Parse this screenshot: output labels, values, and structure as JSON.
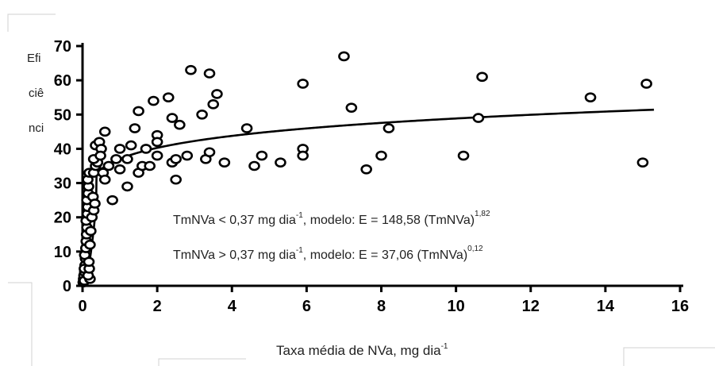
{
  "chart_data": {
    "type": "scatter",
    "ylabel_fragments": [
      "Efi",
      "ciê",
      "nci"
    ],
    "xlabel_main": "Taxa média de NVa, mg dia",
    "xlabel_sup": "-1",
    "xlim": [
      0,
      16
    ],
    "ylim": [
      0,
      70
    ],
    "x_ticks": [
      0,
      2,
      4,
      6,
      8,
      10,
      12,
      14,
      16
    ],
    "y_ticks": [
      0,
      10,
      20,
      30,
      40,
      50,
      60,
      70
    ],
    "annotations": [
      {
        "main": "TmNVa < 0,37 mg dia",
        "sup1": "-1",
        "mid": ", modelo: E = 148,58 (TmNVa)",
        "sup2": "1,82"
      },
      {
        "main": "TmNVa > 0,37 mg dia",
        "sup1": "-1",
        "mid": ", modelo: E = 37,06 (TmNVa)",
        "sup2": "0,12"
      }
    ],
    "fit_models": [
      {
        "range": [
          0,
          0.37
        ],
        "a": 148.58,
        "b": 1.82
      },
      {
        "range": [
          0.37,
          15.3
        ],
        "a": 37.06,
        "b": 0.12
      }
    ],
    "points": [
      [
        0.02,
        1
      ],
      [
        0.03,
        2
      ],
      [
        0.04,
        3
      ],
      [
        0.05,
        1.5
      ],
      [
        0.06,
        4
      ],
      [
        0.07,
        6
      ],
      [
        0.05,
        5
      ],
      [
        0.08,
        8
      ],
      [
        0.06,
        9
      ],
      [
        0.09,
        11
      ],
      [
        0.1,
        13
      ],
      [
        0.11,
        15
      ],
      [
        0.12,
        17
      ],
      [
        0.1,
        19
      ],
      [
        0.13,
        21
      ],
      [
        0.14,
        23
      ],
      [
        0.12,
        25
      ],
      [
        0.15,
        27
      ],
      [
        0.16,
        29
      ],
      [
        0.14,
        31
      ],
      [
        0.18,
        33
      ],
      [
        0.2,
        2
      ],
      [
        0.15,
        3
      ],
      [
        0.18,
        5
      ],
      [
        0.2,
        12
      ],
      [
        0.22,
        16
      ],
      [
        0.17,
        7
      ],
      [
        0.25,
        20
      ],
      [
        0.3,
        22
      ],
      [
        0.28,
        26
      ],
      [
        0.33,
        24
      ],
      [
        0.3,
        33
      ],
      [
        0.35,
        35
      ],
      [
        0.4,
        36
      ],
      [
        0.3,
        37
      ],
      [
        0.35,
        41
      ],
      [
        0.45,
        42
      ],
      [
        0.5,
        40
      ],
      [
        0.48,
        38
      ],
      [
        0.55,
        33
      ],
      [
        0.6,
        31
      ],
      [
        0.7,
        35
      ],
      [
        0.6,
        45
      ],
      [
        0.8,
        25
      ],
      [
        0.9,
        37
      ],
      [
        1.0,
        34
      ],
      [
        1.0,
        40
      ],
      [
        1.2,
        29
      ],
      [
        1.2,
        37
      ],
      [
        1.3,
        41
      ],
      [
        1.4,
        46
      ],
      [
        1.5,
        33
      ],
      [
        1.5,
        51
      ],
      [
        1.6,
        35
      ],
      [
        1.7,
        40
      ],
      [
        1.8,
        35
      ],
      [
        1.9,
        54
      ],
      [
        2.0,
        44
      ],
      [
        2.0,
        42
      ],
      [
        2.0,
        38
      ],
      [
        2.3,
        55
      ],
      [
        2.4,
        49
      ],
      [
        2.4,
        36
      ],
      [
        2.5,
        37
      ],
      [
        2.5,
        31
      ],
      [
        2.6,
        47
      ],
      [
        2.8,
        38
      ],
      [
        2.9,
        63
      ],
      [
        3.2,
        50
      ],
      [
        3.3,
        37
      ],
      [
        3.4,
        62
      ],
      [
        3.4,
        39
      ],
      [
        3.5,
        53
      ],
      [
        3.6,
        56
      ],
      [
        3.8,
        36
      ],
      [
        4.4,
        46
      ],
      [
        4.6,
        35
      ],
      [
        4.8,
        38
      ],
      [
        5.3,
        36
      ],
      [
        5.9,
        59
      ],
      [
        5.9,
        40
      ],
      [
        5.9,
        38
      ],
      [
        7.0,
        67
      ],
      [
        7.2,
        52
      ],
      [
        7.6,
        34
      ],
      [
        8.0,
        38
      ],
      [
        8.2,
        46
      ],
      [
        10.2,
        38
      ],
      [
        10.6,
        49
      ],
      [
        10.7,
        61
      ],
      [
        13.6,
        55
      ],
      [
        15.0,
        36
      ],
      [
        15.1,
        59
      ]
    ]
  }
}
